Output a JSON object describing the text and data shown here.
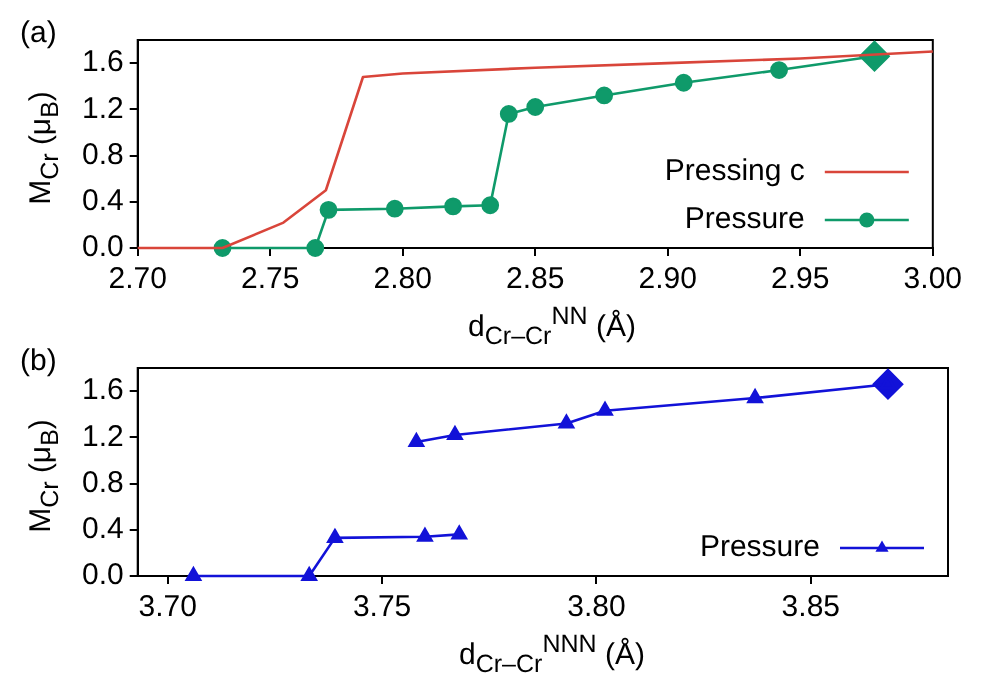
{
  "chart_data": [
    {
      "type": "line",
      "title": "(a)",
      "xlabel": "d$_{Cr–Cr}$$^{NN}$ (Å)",
      "ylabel": "M$_{Cr}$ (μ$_{B}$)",
      "xlim": [
        2.7,
        3.0
      ],
      "ylim": [
        0,
        1.8
      ],
      "xticks": [
        {
          "value": 2.7,
          "label": "2.70"
        },
        {
          "value": 2.75,
          "label": "2.75"
        },
        {
          "value": 2.8,
          "label": "2.80"
        },
        {
          "value": 2.85,
          "label": "2.85"
        },
        {
          "value": 2.9,
          "label": "2.90"
        },
        {
          "value": 2.95,
          "label": "2.95"
        },
        {
          "value": 3.0,
          "label": "3.00"
        }
      ],
      "yticks": [
        {
          "value": 0,
          "label": "0.0"
        },
        {
          "value": 0.4,
          "label": "0.4"
        },
        {
          "value": 0.8,
          "label": "0.8"
        },
        {
          "value": 1.2,
          "label": "1.2"
        },
        {
          "value": 1.6,
          "label": "1.6"
        }
      ],
      "legend": "bottom right",
      "series": [
        {
          "type": "line",
          "name": "Pressing c",
          "color": "#d9453a",
          "marker": "none",
          "x": [
            2.7,
            2.732,
            2.755,
            2.771,
            2.785,
            2.8,
            2.85,
            2.9,
            2.95,
            3.0
          ],
          "values": [
            0,
            0,
            0.22,
            0.5,
            1.48,
            1.51,
            1.56,
            1.6,
            1.64,
            1.7
          ]
        },
        {
          "type": "line",
          "name": "Pressure",
          "color": "#0f9a6a",
          "marker": "circle",
          "x": [
            2.732,
            2.767,
            2.772,
            2.797,
            2.819,
            2.833,
            2.84,
            2.85,
            2.876,
            2.906,
            2.942,
            2.978
          ],
          "values": [
            0,
            0,
            0.33,
            0.34,
            0.36,
            0.37,
            1.16,
            1.22,
            1.32,
            1.43,
            1.54,
            1.66
          ]
        },
        {
          "type": "scatter",
          "color": "#0f9a6a",
          "marker": "diamond",
          "x": [
            2.978
          ],
          "values": [
            1.66
          ]
        }
      ]
    },
    {
      "type": "line",
      "title": "(b)",
      "xlabel": "d$_{Cr–Cr}$$^{NNN}$ (Å)",
      "ylabel": "M$_{Cr}$ (μ$_{B}$)",
      "xlim": [
        3.693,
        3.882
      ],
      "ylim": [
        0,
        1.8
      ],
      "xticks": [
        {
          "value": 3.7,
          "label": "3.70"
        },
        {
          "value": 3.75,
          "label": "3.75"
        },
        {
          "value": 3.8,
          "label": "3.80"
        },
        {
          "value": 3.85,
          "label": "3.85"
        }
      ],
      "yticks": [
        {
          "value": 0,
          "label": "0.0"
        },
        {
          "value": 0.4,
          "label": "0.4"
        },
        {
          "value": 0.8,
          "label": "0.8"
        },
        {
          "value": 1.2,
          "label": "1.2"
        },
        {
          "value": 1.6,
          "label": "1.6"
        }
      ],
      "legend": "bottom right",
      "series": [
        {
          "type": "line",
          "name": "Pressure",
          "color": "#1212d8",
          "marker": "triangle",
          "x": [
            3.706,
            3.733,
            3.739,
            3.76,
            3.768,
            null,
            3.758,
            3.767,
            3.793,
            3.802,
            3.837,
            3.868
          ],
          "values": [
            0,
            0,
            0.33,
            0.34,
            0.36,
            null,
            1.16,
            1.22,
            1.32,
            1.43,
            1.54,
            1.66
          ]
        },
        {
          "type": "scatter",
          "color": "#1212d8",
          "marker": "diamond",
          "x": [
            3.868
          ],
          "values": [
            1.66
          ]
        }
      ]
    }
  ]
}
